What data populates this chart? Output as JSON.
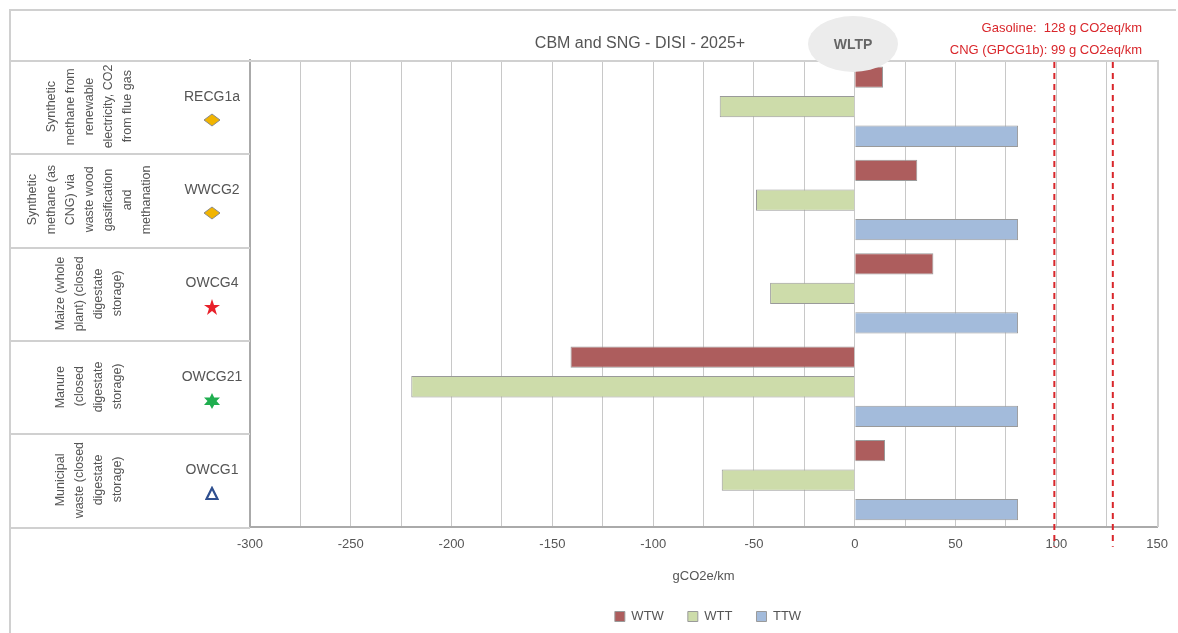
{
  "chart_data": {
    "type": "bar",
    "orientation": "horizontal",
    "title": "CBM and SNG - DISI - 2025+",
    "xlabel": "gCO2e/km",
    "categories": [
      "RECG1a",
      "WWCG2",
      "OWCG4",
      "OWCG21",
      "OWCG1"
    ],
    "series": [
      {
        "name": "WTW",
        "color": "#ad5d5d",
        "values": [
          14,
          31,
          39,
          -141,
          15
        ]
      },
      {
        "name": "WTT",
        "color": "#cddcaa",
        "values": [
          -67,
          -49,
          -42,
          -220,
          -66
        ]
      },
      {
        "name": "TTW",
        "color": "#a3bbdb",
        "values": [
          81,
          81,
          81,
          81,
          81
        ]
      }
    ],
    "xlim": [
      -300,
      150
    ],
    "xticks": [
      -300,
      {
        "value": -275,
        "label": null
      },
      -250,
      {
        "value": -225,
        "label": null
      },
      -200,
      {
        "value": -175,
        "label": null
      },
      -150,
      {
        "value": -125,
        "label": null
      },
      -100,
      {
        "value": -75,
        "label": null
      },
      -50,
      {
        "value": -25,
        "label": null
      },
      0,
      {
        "value": 25,
        "label": null
      },
      50,
      {
        "value": 75,
        "label": null
      },
      100,
      {
        "value": 125,
        "label": null
      },
      150
    ],
    "grid": "x",
    "legend": "bottom",
    "ref_lines": [
      {
        "axis": "x",
        "value": 128,
        "label": "Gasoline:  128 g CO2eq/km",
        "color": "#d9262b",
        "line_style": "dashed"
      },
      {
        "axis": "x",
        "value": 99,
        "label": "CNG (GPCG1b): 99 g CO2eq/km",
        "color": "#d9262b",
        "line_style": "dashed"
      }
    ],
    "annotations": [
      "WLTP",
      "Synthetic methane from renewable electricity, CO2 from flue gas",
      "Synthetic methane (as CNG) via waste wood gasification and methanation",
      "Maize (whole plant) (closed digestate storage)",
      "Manure (closed digestate storage)",
      "Municipal waste (closed digestate storage)"
    ]
  }
}
